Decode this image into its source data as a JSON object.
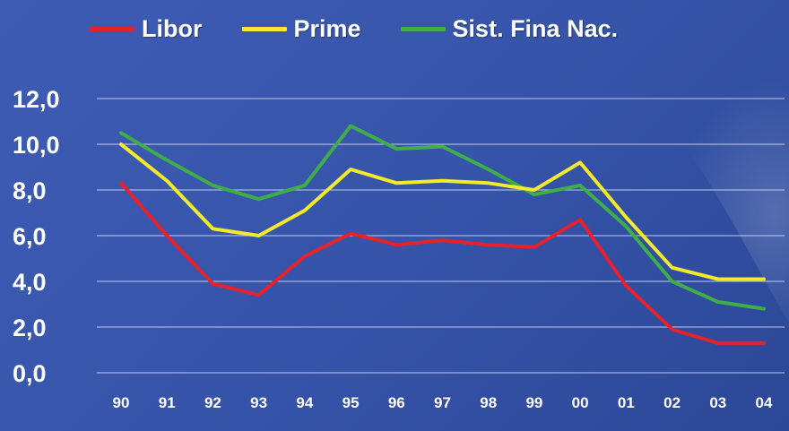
{
  "chart_data": {
    "type": "line",
    "categories": [
      "90",
      "91",
      "92",
      "93",
      "94",
      "95",
      "96",
      "97",
      "98",
      "99",
      "00",
      "01",
      "02",
      "03",
      "04"
    ],
    "ylim": [
      0,
      12
    ],
    "yticks": [
      "0,0",
      "2,0",
      "4,0",
      "6,0",
      "8,0",
      "10,0",
      "12,0"
    ],
    "grid": true,
    "legend_position": "top",
    "series": [
      {
        "name": "Libor",
        "color": "#e8202a",
        "values": [
          8.3,
          6.0,
          3.9,
          3.4,
          5.1,
          6.1,
          5.6,
          5.8,
          5.6,
          5.5,
          6.7,
          3.8,
          1.9,
          1.3,
          1.3
        ]
      },
      {
        "name": "Prime",
        "color": "#f2ea2a",
        "values": [
          10.0,
          8.4,
          6.3,
          6.0,
          7.1,
          8.9,
          8.3,
          8.4,
          8.3,
          8.0,
          9.2,
          6.8,
          4.6,
          4.1,
          4.1
        ]
      },
      {
        "name": "Sist. Fina Nac.",
        "color": "#3fae49",
        "values": [
          10.5,
          9.3,
          8.2,
          7.6,
          8.2,
          10.8,
          9.8,
          9.9,
          8.9,
          7.8,
          8.2,
          6.4,
          4.0,
          3.1,
          2.8
        ]
      }
    ]
  }
}
